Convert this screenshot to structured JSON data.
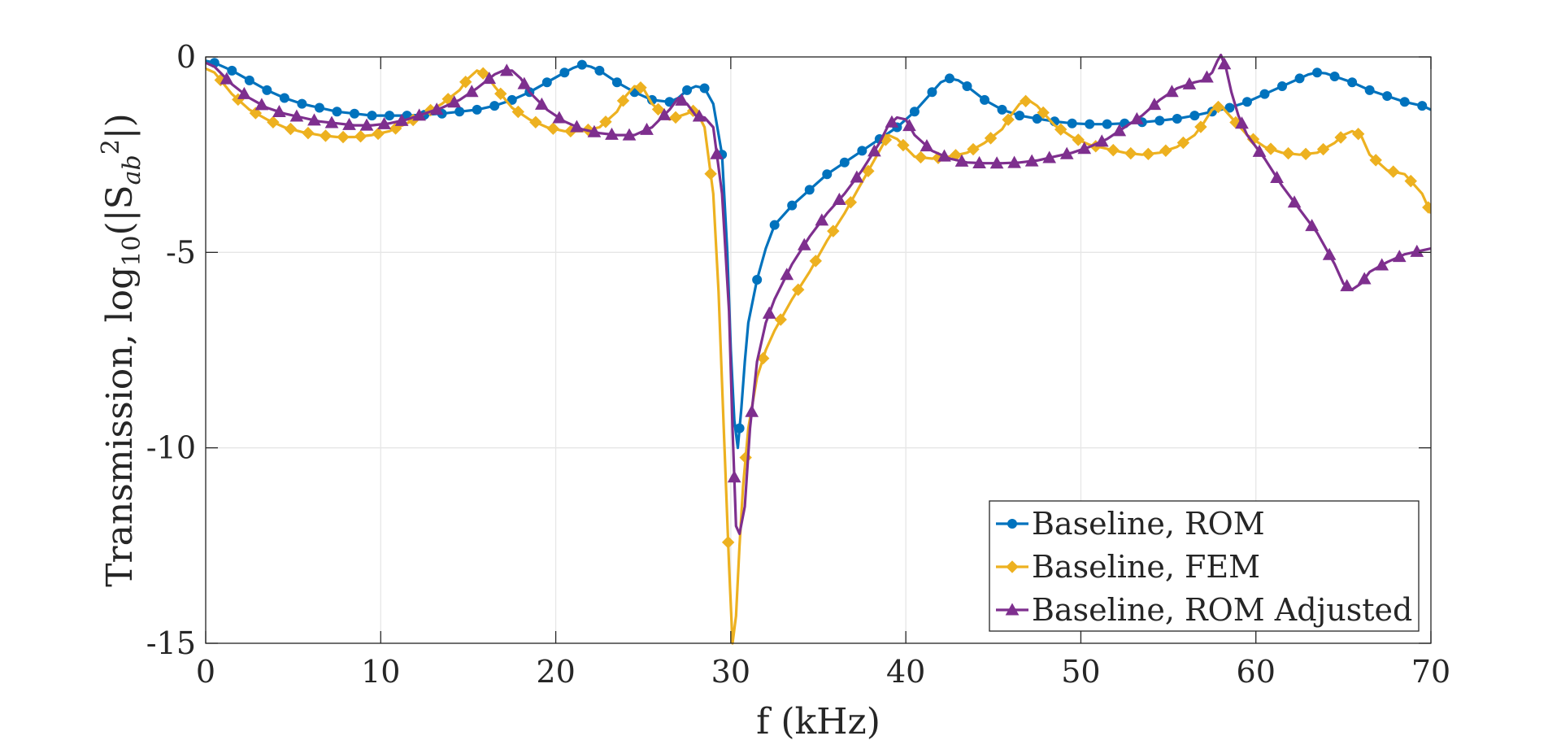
{
  "chart_data": {
    "type": "line",
    "title": "",
    "xlabel": "f (kHz)",
    "ylabel_main": "Transmission, log",
    "ylabel_sub": "10",
    "ylabel_open": "(|S",
    "ylabel_sub2": "ab",
    "ylabel_sup": "2",
    "ylabel_close": "|)",
    "xlim": [
      0,
      70
    ],
    "ylim": [
      -15,
      0
    ],
    "xticks": [
      0,
      10,
      20,
      30,
      40,
      50,
      60,
      70
    ],
    "xtick_labels": [
      "0",
      "10",
      "20",
      "30",
      "40",
      "50",
      "60",
      "70"
    ],
    "yticks": [
      0,
      -5,
      -10,
      -15
    ],
    "ytick_labels": [
      "0",
      "-5",
      "-10",
      "-15"
    ],
    "grid": true,
    "legend_position": "bottom-right",
    "series": [
      {
        "name": "Baseline, ROM",
        "color": "#0072BD",
        "marker": "circle",
        "x": [
          0.0,
          0.5,
          1.5,
          2.5,
          3.5,
          4.5,
          5.5,
          6.5,
          7.5,
          8.5,
          9.5,
          10.5,
          11.5,
          12.5,
          13.5,
          14.5,
          15.5,
          16.5,
          17.5,
          18.5,
          19.5,
          20.5,
          21.0,
          21.5,
          22.0,
          22.5,
          23.5,
          24.5,
          25.5,
          26.5,
          27.0,
          27.5,
          28.0,
          28.5,
          29.0,
          29.5,
          29.8,
          30.0,
          30.2,
          30.4,
          30.6,
          30.8,
          31.0,
          31.5,
          32.0,
          32.5,
          33.5,
          34.5,
          35.5,
          36.5,
          37.5,
          38.5,
          39.5,
          40.5,
          41.5,
          42.0,
          42.5,
          43.0,
          43.5,
          44.5,
          45.5,
          46.5,
          47.5,
          48.5,
          49.5,
          50.5,
          51.5,
          52.5,
          53.5,
          54.5,
          55.5,
          56.5,
          57.5,
          58.5,
          59.5,
          60.5,
          61.5,
          62.5,
          63.0,
          63.5,
          64.0,
          64.5,
          65.5,
          66.5,
          67.5,
          68.5,
          69.5,
          70.0
        ],
        "y": [
          -0.1,
          -0.15,
          -0.35,
          -0.6,
          -0.85,
          -1.05,
          -1.2,
          -1.3,
          -1.4,
          -1.45,
          -1.5,
          -1.5,
          -1.5,
          -1.48,
          -1.45,
          -1.4,
          -1.35,
          -1.25,
          -1.1,
          -0.9,
          -0.65,
          -0.4,
          -0.28,
          -0.2,
          -0.25,
          -0.35,
          -0.65,
          -0.9,
          -1.1,
          -1.15,
          -1.05,
          -0.85,
          -0.75,
          -0.8,
          -1.2,
          -2.5,
          -5.0,
          -7.5,
          -9.3,
          -10.0,
          -9.0,
          -7.8,
          -6.8,
          -5.7,
          -4.9,
          -4.3,
          -3.8,
          -3.4,
          -3.0,
          -2.7,
          -2.4,
          -2.1,
          -1.8,
          -1.4,
          -0.9,
          -0.65,
          -0.55,
          -0.6,
          -0.75,
          -1.1,
          -1.35,
          -1.5,
          -1.58,
          -1.65,
          -1.7,
          -1.72,
          -1.72,
          -1.7,
          -1.67,
          -1.63,
          -1.58,
          -1.5,
          -1.4,
          -1.3,
          -1.15,
          -0.95,
          -0.75,
          -0.55,
          -0.45,
          -0.4,
          -0.42,
          -0.5,
          -0.65,
          -0.85,
          -1.0,
          -1.15,
          -1.25,
          -1.35
        ]
      },
      {
        "name": "Baseline, FEM",
        "color": "#EDB120",
        "marker": "diamond",
        "x": [
          0.0,
          0.5,
          1.5,
          2.5,
          3.5,
          4.5,
          5.5,
          6.5,
          7.5,
          8.5,
          9.5,
          10.5,
          11.5,
          12.5,
          13.5,
          14.5,
          15.0,
          15.5,
          16.0,
          16.5,
          17.5,
          18.5,
          19.5,
          20.5,
          21.5,
          22.5,
          23.5,
          24.0,
          24.5,
          25.0,
          25.5,
          26.5,
          27.5,
          28.0,
          28.5,
          29.0,
          29.3,
          29.6,
          29.9,
          30.1,
          30.3,
          30.5,
          30.7,
          31.0,
          31.5,
          32.0,
          32.5,
          33.5,
          34.5,
          35.5,
          36.5,
          37.5,
          38.5,
          39.0,
          39.5,
          40.5,
          41.5,
          42.5,
          43.5,
          44.5,
          45.5,
          46.0,
          46.5,
          47.0,
          47.5,
          48.5,
          49.5,
          50.5,
          51.5,
          52.5,
          53.5,
          54.5,
          55.5,
          56.5,
          57.0,
          57.5,
          58.0,
          58.5,
          59.5,
          60.5,
          61.5,
          62.5,
          63.5,
          64.5,
          65.0,
          65.5,
          66.0,
          66.5,
          67.5,
          68.5,
          69.5,
          70.0
        ],
        "y": [
          -0.3,
          -0.4,
          -0.95,
          -1.35,
          -1.6,
          -1.8,
          -1.92,
          -2.0,
          -2.05,
          -2.05,
          -2.0,
          -1.9,
          -1.7,
          -1.45,
          -1.2,
          -0.85,
          -0.55,
          -0.35,
          -0.45,
          -0.75,
          -1.3,
          -1.6,
          -1.8,
          -1.9,
          -1.9,
          -1.8,
          -1.4,
          -1.0,
          -0.75,
          -0.8,
          -1.2,
          -1.6,
          -1.45,
          -1.35,
          -1.8,
          -3.5,
          -6.0,
          -9.5,
          -13.0,
          -15.0,
          -14.3,
          -12.5,
          -11.0,
          -9.5,
          -8.2,
          -7.5,
          -7.0,
          -6.2,
          -5.5,
          -4.7,
          -4.0,
          -3.2,
          -2.4,
          -2.0,
          -2.1,
          -2.55,
          -2.6,
          -2.55,
          -2.45,
          -2.2,
          -1.85,
          -1.5,
          -1.2,
          -1.1,
          -1.25,
          -1.75,
          -2.05,
          -2.25,
          -2.35,
          -2.45,
          -2.5,
          -2.45,
          -2.3,
          -2.0,
          -1.7,
          -1.35,
          -1.25,
          -1.5,
          -2.0,
          -2.3,
          -2.45,
          -2.5,
          -2.45,
          -2.2,
          -2.0,
          -1.9,
          -2.0,
          -2.5,
          -2.9,
          -3.0,
          -3.5,
          -4.0
        ]
      },
      {
        "name": "Baseline, ROM Adjusted",
        "color": "#7E2F8E",
        "marker": "triangle",
        "x": [
          0.0,
          0.5,
          1.5,
          2.5,
          3.5,
          4.5,
          5.5,
          6.5,
          7.5,
          8.5,
          9.5,
          10.5,
          11.5,
          12.5,
          13.5,
          14.5,
          15.5,
          16.5,
          17.0,
          17.5,
          18.0,
          18.5,
          19.5,
          20.5,
          21.5,
          22.5,
          23.5,
          24.5,
          25.5,
          26.5,
          27.0,
          27.5,
          28.0,
          28.5,
          29.0,
          29.5,
          29.9,
          30.1,
          30.3,
          30.5,
          30.8,
          31.1,
          31.5,
          32.0,
          32.5,
          33.5,
          34.5,
          35.5,
          36.5,
          37.5,
          38.5,
          39.0,
          39.5,
          40.0,
          40.5,
          41.5,
          42.5,
          43.5,
          44.5,
          45.5,
          46.5,
          47.5,
          48.5,
          49.5,
          50.5,
          51.5,
          52.5,
          53.5,
          54.5,
          55.5,
          56.5,
          57.0,
          57.5,
          57.8,
          58.0,
          58.3,
          58.6,
          59.0,
          59.5,
          60.5,
          61.5,
          62.5,
          63.5,
          64.5,
          65.0,
          65.5,
          66.0,
          66.5,
          67.5,
          68.5,
          69.5,
          70.0
        ],
        "y": [
          -0.15,
          -0.25,
          -0.7,
          -1.05,
          -1.3,
          -1.45,
          -1.55,
          -1.65,
          -1.7,
          -1.75,
          -1.75,
          -1.7,
          -1.6,
          -1.45,
          -1.3,
          -1.1,
          -0.8,
          -0.45,
          -0.35,
          -0.35,
          -0.55,
          -0.9,
          -1.35,
          -1.65,
          -1.85,
          -1.95,
          -2.0,
          -2.0,
          -1.8,
          -1.35,
          -1.05,
          -1.2,
          -1.5,
          -1.55,
          -1.8,
          -3.5,
          -6.5,
          -9.5,
          -12.0,
          -12.2,
          -11.5,
          -9.5,
          -7.8,
          -6.8,
          -6.2,
          -5.3,
          -4.6,
          -4.0,
          -3.5,
          -2.9,
          -2.2,
          -1.75,
          -1.55,
          -1.6,
          -2.0,
          -2.4,
          -2.6,
          -2.7,
          -2.72,
          -2.72,
          -2.7,
          -2.65,
          -2.55,
          -2.45,
          -2.3,
          -2.1,
          -1.8,
          -1.5,
          -1.1,
          -0.8,
          -0.65,
          -0.6,
          -0.4,
          -0.1,
          0.05,
          -0.3,
          -0.9,
          -1.5,
          -2.0,
          -2.6,
          -3.3,
          -3.9,
          -4.5,
          -5.3,
          -5.8,
          -5.95,
          -5.8,
          -5.5,
          -5.25,
          -5.05,
          -4.95,
          -4.9
        ]
      }
    ]
  }
}
